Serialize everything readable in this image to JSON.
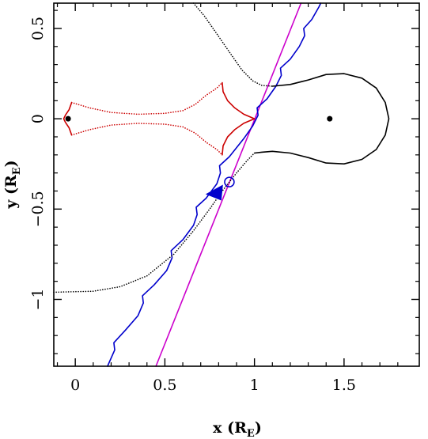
{
  "chart_data": {
    "type": "line",
    "title": "",
    "xlabel": {
      "main": "x (R",
      "sub": "E",
      "close": ")"
    },
    "ylabel": {
      "main": "y (R",
      "sub": "E",
      "close": ")"
    },
    "xlim": [
      -0.12,
      1.92
    ],
    "ylim": [
      -1.37,
      0.64
    ],
    "grid": false,
    "legend": "none",
    "x_ticks": [
      {
        "value": 0,
        "label": "0"
      },
      {
        "value": 0.5,
        "label": "0.5"
      },
      {
        "value": 1,
        "label": "1"
      },
      {
        "value": 1.5,
        "label": "1.5"
      }
    ],
    "y_ticks": [
      {
        "value": -1,
        "label": "−1"
      },
      {
        "value": -0.5,
        "label": "−0.5"
      },
      {
        "value": 0,
        "label": "0"
      },
      {
        "value": 0.5,
        "label": "0.5"
      }
    ],
    "lenses": [
      {
        "x": -0.04,
        "y": 0.0
      },
      {
        "x": 1.42,
        "y": 0.0
      }
    ],
    "source_circle": {
      "x": 0.86,
      "y": -0.35
    },
    "series": [
      {
        "style": "solid",
        "color": "#cc00cc",
        "points": [
          [
            0.45,
            -1.37
          ],
          [
            1.26,
            0.64
          ]
        ]
      },
      {
        "style": "solid",
        "color": "#0000cc",
        "points": [
          [
            0.18,
            -1.37
          ],
          [
            0.22,
            -1.28
          ],
          [
            0.215,
            -1.24
          ],
          [
            0.28,
            -1.17
          ],
          [
            0.35,
            -1.09
          ],
          [
            0.38,
            -1.02
          ],
          [
            0.375,
            -0.98
          ],
          [
            0.44,
            -0.92
          ],
          [
            0.51,
            -0.84
          ],
          [
            0.54,
            -0.77
          ],
          [
            0.535,
            -0.73
          ],
          [
            0.6,
            -0.67
          ],
          [
            0.66,
            -0.59
          ],
          [
            0.68,
            -0.53
          ],
          [
            0.675,
            -0.49
          ],
          [
            0.73,
            -0.44
          ],
          [
            0.79,
            -0.36
          ],
          [
            0.81,
            -0.3
          ],
          [
            0.805,
            -0.26
          ],
          [
            0.86,
            -0.21
          ],
          [
            0.94,
            -0.11
          ],
          [
            0.99,
            -0.04
          ],
          [
            1.02,
            0.02
          ],
          [
            1.015,
            0.06
          ],
          [
            1.07,
            0.11
          ],
          [
            1.12,
            0.18
          ],
          [
            1.15,
            0.24
          ],
          [
            1.145,
            0.28
          ],
          [
            1.2,
            0.33
          ],
          [
            1.25,
            0.4
          ],
          [
            1.28,
            0.46
          ],
          [
            1.275,
            0.5
          ],
          [
            1.32,
            0.55
          ],
          [
            1.36,
            0.62
          ],
          [
            1.37,
            0.64
          ]
        ]
      },
      {
        "style": "dotted",
        "color": "#000000",
        "points": [
          [
            -0.12,
            -0.96
          ],
          [
            0.1,
            -0.955
          ],
          [
            0.25,
            -0.93
          ],
          [
            0.4,
            -0.87
          ],
          [
            0.55,
            -0.75
          ],
          [
            0.66,
            -0.62
          ],
          [
            0.75,
            -0.5
          ],
          [
            0.82,
            -0.4
          ],
          [
            0.9,
            -0.3
          ],
          [
            0.96,
            -0.23
          ],
          [
            1.0,
            -0.19
          ]
        ]
      },
      {
        "style": "dotted",
        "color": "#000000",
        "points": [
          [
            0.66,
            0.64
          ],
          [
            0.72,
            0.57
          ],
          [
            0.79,
            0.47
          ],
          [
            0.86,
            0.37
          ],
          [
            0.93,
            0.27
          ],
          [
            0.99,
            0.21
          ],
          [
            1.04,
            0.185
          ],
          [
            1.1,
            0.18
          ]
        ]
      },
      {
        "style": "solid",
        "color": "#000000",
        "points": [
          [
            1.1,
            0.18
          ],
          [
            1.2,
            0.19
          ],
          [
            1.3,
            0.215
          ],
          [
            1.4,
            0.245
          ],
          [
            1.5,
            0.25
          ],
          [
            1.6,
            0.225
          ],
          [
            1.68,
            0.17
          ],
          [
            1.73,
            0.09
          ],
          [
            1.75,
            0.0
          ],
          [
            1.73,
            -0.09
          ],
          [
            1.68,
            -0.17
          ],
          [
            1.6,
            -0.225
          ],
          [
            1.5,
            -0.25
          ],
          [
            1.4,
            -0.245
          ],
          [
            1.3,
            -0.215
          ],
          [
            1.2,
            -0.19
          ],
          [
            1.1,
            -0.18
          ],
          [
            1.04,
            -0.185
          ],
          [
            1.0,
            -0.19
          ]
        ]
      },
      {
        "style": "dotted",
        "color": "#cc0000",
        "points": [
          [
            -0.02,
            0.09
          ],
          [
            0.08,
            0.06
          ],
          [
            0.2,
            0.035
          ],
          [
            0.35,
            0.025
          ],
          [
            0.5,
            0.03
          ],
          [
            0.6,
            0.045
          ],
          [
            0.67,
            0.08
          ],
          [
            0.73,
            0.13
          ],
          [
            0.79,
            0.17
          ],
          [
            0.82,
            0.2
          ]
        ]
      },
      {
        "style": "dotted",
        "color": "#cc0000",
        "points": [
          [
            -0.02,
            -0.09
          ],
          [
            0.08,
            -0.06
          ],
          [
            0.2,
            -0.035
          ],
          [
            0.35,
            -0.025
          ],
          [
            0.5,
            -0.03
          ],
          [
            0.6,
            -0.045
          ],
          [
            0.67,
            -0.08
          ],
          [
            0.73,
            -0.13
          ],
          [
            0.79,
            -0.17
          ],
          [
            0.82,
            -0.2
          ]
        ]
      },
      {
        "style": "solid",
        "color": "#cc0000",
        "points": [
          [
            -0.02,
            0.09
          ],
          [
            -0.035,
            0.05
          ],
          [
            -0.055,
            0.02
          ],
          [
            -0.065,
            0.0
          ],
          [
            -0.055,
            -0.02
          ],
          [
            -0.035,
            -0.05
          ],
          [
            -0.02,
            -0.09
          ]
        ]
      },
      {
        "style": "solid",
        "color": "#cc0000",
        "points": [
          [
            0.82,
            0.2
          ],
          [
            0.825,
            0.15
          ],
          [
            0.85,
            0.1
          ],
          [
            0.89,
            0.06
          ],
          [
            0.94,
            0.025
          ],
          [
            1.0,
            0.0
          ],
          [
            0.94,
            -0.025
          ],
          [
            0.89,
            -0.06
          ],
          [
            0.85,
            -0.1
          ],
          [
            0.825,
            -0.15
          ],
          [
            0.82,
            -0.2
          ]
        ]
      }
    ]
  }
}
